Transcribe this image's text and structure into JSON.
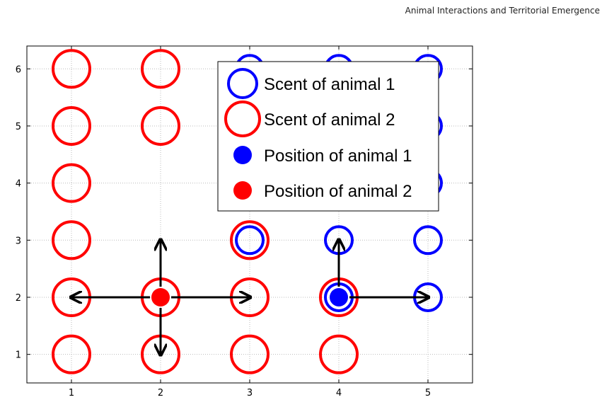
{
  "header": {
    "title": "Animal Interactions and Territorial Emergence"
  },
  "chart_data": {
    "type": "scatter",
    "title": "",
    "xlabel": "",
    "ylabel": "",
    "xlim": [
      0.5,
      5.5
    ],
    "ylim": [
      0.5,
      6.4
    ],
    "xticks": [
      "1",
      "2",
      "3",
      "4",
      "5"
    ],
    "yticks": [
      "1",
      "2",
      "3",
      "4",
      "5",
      "6"
    ],
    "grid": true,
    "legend_placement": "top-right",
    "colors": {
      "animal1": "#0000ff",
      "animal2": "#ff0000",
      "arrow": "#000000"
    },
    "series": [
      {
        "name": "Scent of animal 1",
        "marker": "open-circle",
        "points": [
          [
            3,
            6
          ],
          [
            4,
            6
          ],
          [
            5,
            6
          ],
          [
            5,
            5
          ],
          [
            5,
            4
          ],
          [
            3,
            3
          ],
          [
            4,
            3
          ],
          [
            5,
            3
          ],
          [
            4,
            2
          ],
          [
            5,
            2
          ]
        ]
      },
      {
        "name": "Scent of animal 2",
        "marker": "open-circle",
        "points": [
          [
            1,
            6
          ],
          [
            2,
            6
          ],
          [
            1,
            5
          ],
          [
            2,
            5
          ],
          [
            1,
            4
          ],
          [
            1,
            3
          ],
          [
            3,
            3
          ],
          [
            1,
            2
          ],
          [
            2,
            2
          ],
          [
            3,
            2
          ],
          [
            4,
            2
          ],
          [
            1,
            1
          ],
          [
            2,
            1
          ],
          [
            3,
            1
          ],
          [
            4,
            1
          ]
        ]
      },
      {
        "name": "Position of animal 1",
        "marker": "filled-dot",
        "points": [
          [
            4,
            2
          ]
        ]
      },
      {
        "name": "Position of animal 2",
        "marker": "filled-dot",
        "points": [
          [
            2,
            2
          ]
        ]
      }
    ],
    "arrows": [
      {
        "from": [
          2,
          2
        ],
        "to": [
          1,
          2
        ]
      },
      {
        "from": [
          2,
          2
        ],
        "to": [
          3,
          2
        ]
      },
      {
        "from": [
          2,
          2
        ],
        "to": [
          2,
          3
        ]
      },
      {
        "from": [
          2,
          2
        ],
        "to": [
          2,
          1
        ]
      },
      {
        "from": [
          4,
          2
        ],
        "to": [
          4,
          3
        ]
      },
      {
        "from": [
          4,
          2
        ],
        "to": [
          5,
          2
        ]
      }
    ]
  }
}
